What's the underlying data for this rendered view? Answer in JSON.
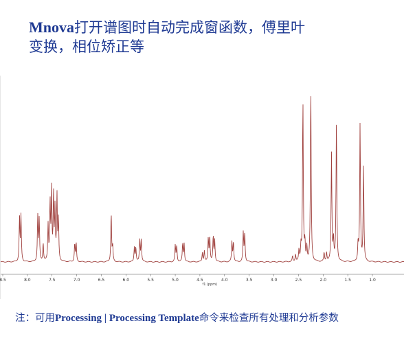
{
  "slide": {
    "title_brand": "Mnova",
    "title_line1": "打开谱图时自动完成窗函数，傅里叶",
    "title_line2": "变换，相位矫正等",
    "note_prefix": "注：可用",
    "note_cmd": "Processing | Processing Template",
    "note_suffix": "命令来检查所有处理和分析参数"
  },
  "colors": {
    "title": "#1f3a93",
    "spectrum": "#a0413e"
  },
  "chart_data": {
    "type": "line",
    "xlabel": "f1 (ppm)",
    "xlim": [
      8.5,
      0.6
    ],
    "ylim": [
      0,
      1.0
    ],
    "x_reversed": true,
    "ticks": [
      "8.5",
      "8.0",
      "7.5",
      "7.0",
      "6.5",
      "6.0",
      "5.5",
      "5.0",
      "4.5",
      "4.0",
      "3.5",
      "3.0",
      "2.5",
      "2.0",
      "1.5",
      "1.0"
    ],
    "tick_values": [
      8.5,
      8.0,
      7.5,
      7.0,
      6.5,
      6.0,
      5.5,
      5.0,
      4.5,
      4.0,
      3.5,
      3.0,
      2.5,
      2.0,
      1.5,
      1.0
    ],
    "peaks": [
      {
        "ppm": 8.16,
        "h": 0.24
      },
      {
        "ppm": 8.13,
        "h": 0.25
      },
      {
        "ppm": 7.79,
        "h": 0.25
      },
      {
        "ppm": 7.76,
        "h": 0.23
      },
      {
        "ppm": 7.68,
        "h": 0.1
      },
      {
        "ppm": 7.58,
        "h": 0.2
      },
      {
        "ppm": 7.54,
        "h": 0.32
      },
      {
        "ppm": 7.51,
        "h": 0.38
      },
      {
        "ppm": 7.47,
        "h": 0.36
      },
      {
        "ppm": 7.44,
        "h": 0.28
      },
      {
        "ppm": 7.4,
        "h": 0.36
      },
      {
        "ppm": 7.37,
        "h": 0.22
      },
      {
        "ppm": 7.04,
        "h": 0.1
      },
      {
        "ppm": 7.01,
        "h": 0.1
      },
      {
        "ppm": 6.3,
        "h": 0.27
      },
      {
        "ppm": 6.27,
        "h": 0.08
      },
      {
        "ppm": 5.83,
        "h": 0.08
      },
      {
        "ppm": 5.8,
        "h": 0.08
      },
      {
        "ppm": 5.72,
        "h": 0.12
      },
      {
        "ppm": 5.69,
        "h": 0.12
      },
      {
        "ppm": 5.0,
        "h": 0.09
      },
      {
        "ppm": 4.97,
        "h": 0.09
      },
      {
        "ppm": 4.85,
        "h": 0.1
      },
      {
        "ppm": 4.82,
        "h": 0.1
      },
      {
        "ppm": 4.45,
        "h": 0.05
      },
      {
        "ppm": 4.41,
        "h": 0.06
      },
      {
        "ppm": 4.33,
        "h": 0.13
      },
      {
        "ppm": 4.3,
        "h": 0.14
      },
      {
        "ppm": 4.23,
        "h": 0.14
      },
      {
        "ppm": 4.2,
        "h": 0.12
      },
      {
        "ppm": 3.85,
        "h": 0.11
      },
      {
        "ppm": 3.82,
        "h": 0.11
      },
      {
        "ppm": 3.62,
        "h": 0.16
      },
      {
        "ppm": 3.59,
        "h": 0.16
      },
      {
        "ppm": 2.62,
        "h": 0.03
      },
      {
        "ppm": 2.56,
        "h": 0.04
      },
      {
        "ppm": 2.49,
        "h": 0.06
      },
      {
        "ppm": 2.45,
        "h": 0.08
      },
      {
        "ppm": 2.41,
        "h": 0.9
      },
      {
        "ppm": 2.37,
        "h": 0.1
      },
      {
        "ppm": 2.33,
        "h": 0.08
      },
      {
        "ppm": 2.25,
        "h": 0.97
      },
      {
        "ppm": 1.98,
        "h": 0.05
      },
      {
        "ppm": 1.93,
        "h": 0.05
      },
      {
        "ppm": 1.83,
        "h": 0.6
      },
      {
        "ppm": 1.79,
        "h": 0.12
      },
      {
        "ppm": 1.73,
        "h": 0.78
      },
      {
        "ppm": 1.29,
        "h": 0.1
      },
      {
        "ppm": 1.25,
        "h": 0.76
      },
      {
        "ppm": 1.18,
        "h": 0.53
      }
    ]
  }
}
